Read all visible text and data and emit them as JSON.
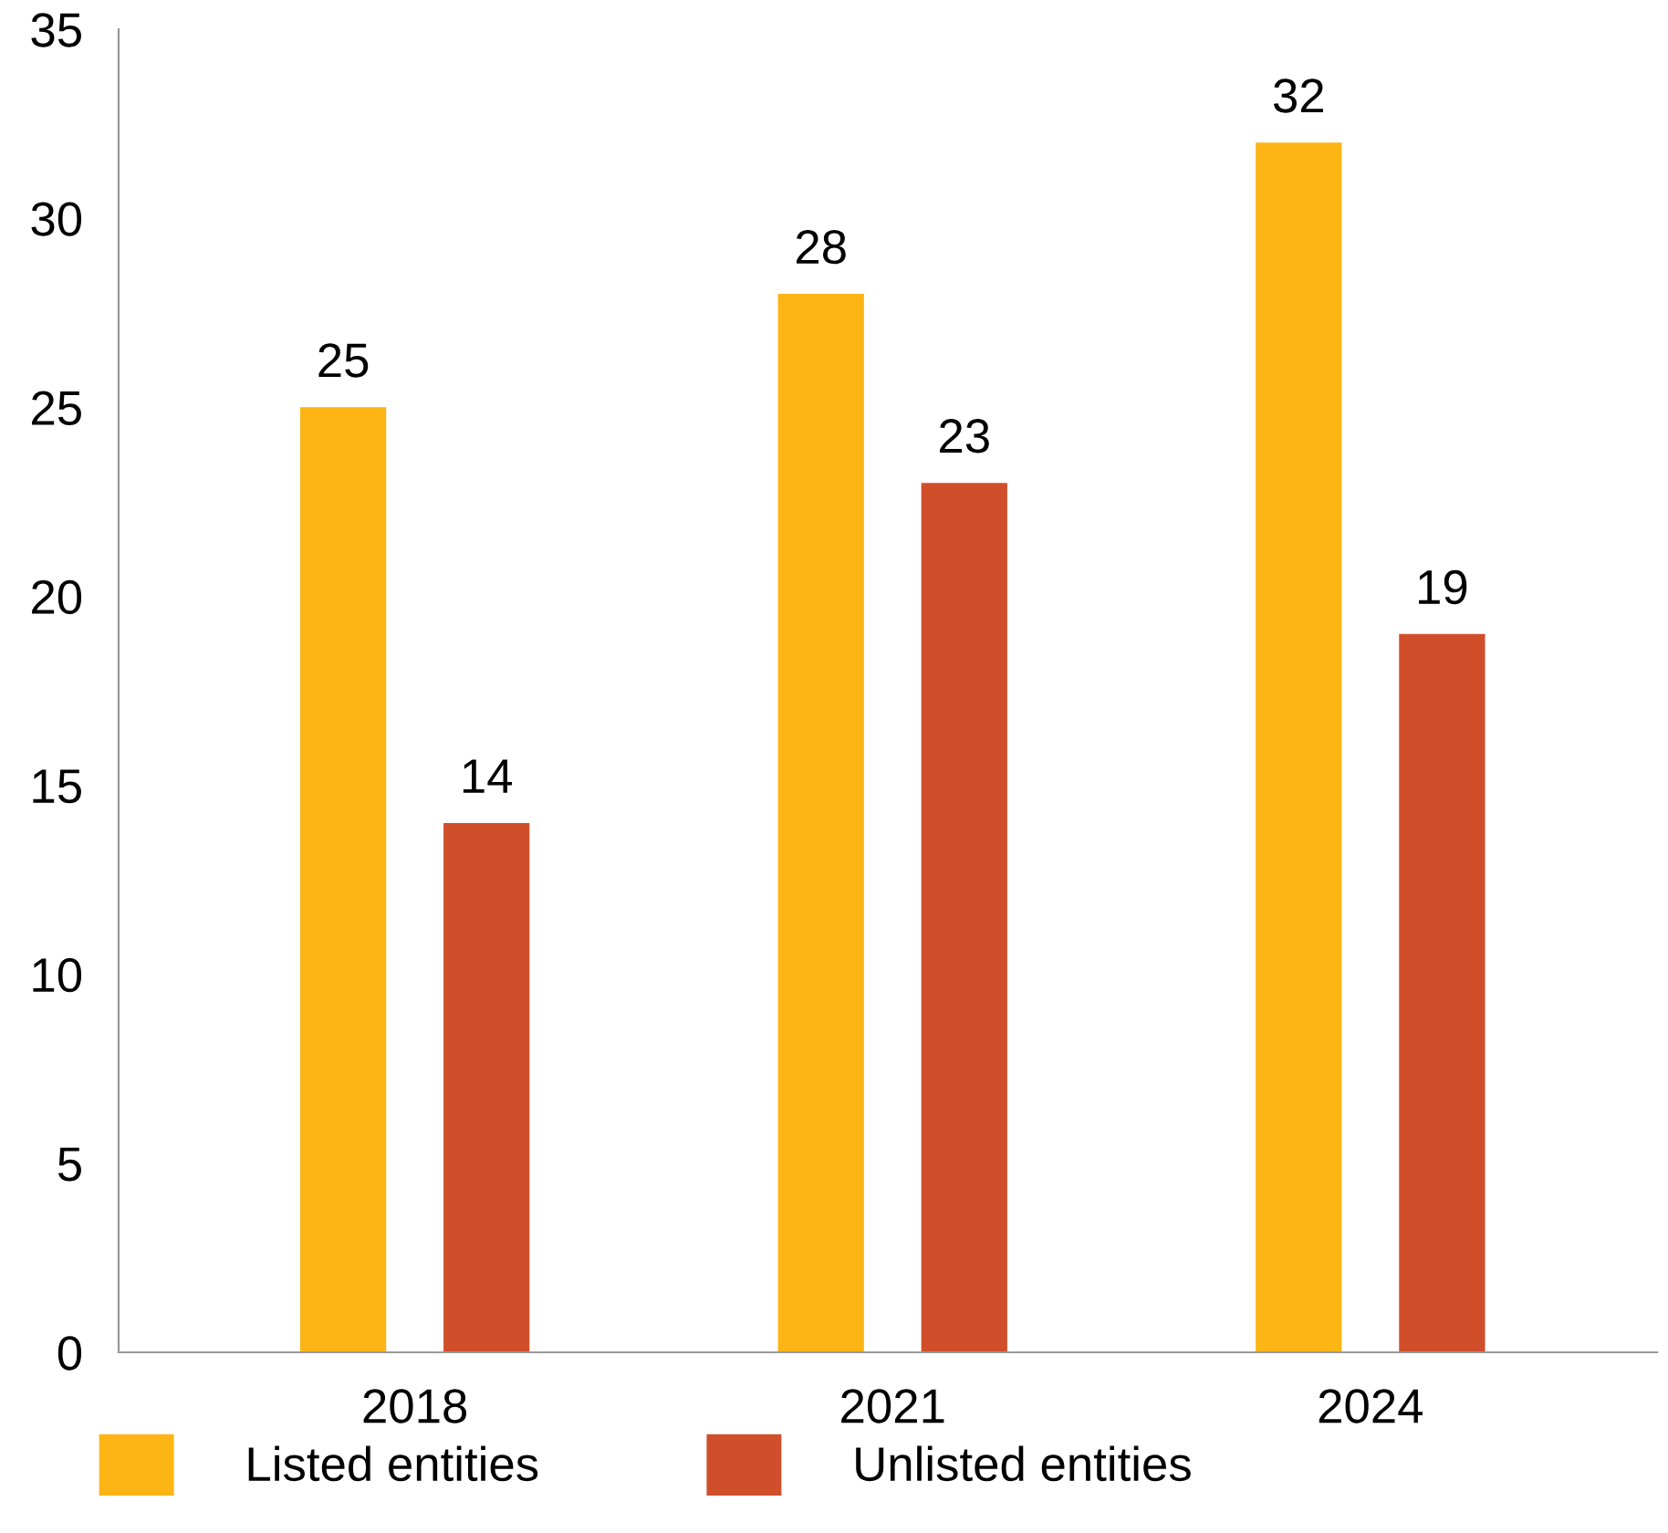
{
  "chart_data": {
    "type": "bar",
    "categories": [
      "2018",
      "2021",
      "2024"
    ],
    "series": [
      {
        "name": "Listed entities",
        "color": "#fdb415",
        "values": [
          25,
          28,
          32
        ]
      },
      {
        "name": "Unlisted entities",
        "color": "#d04f2a",
        "values": [
          14,
          23,
          19
        ]
      }
    ],
    "ylim": [
      0,
      35
    ],
    "yticks": [
      0,
      5,
      10,
      15,
      20,
      25,
      30,
      35
    ],
    "grid": false,
    "legend": "bottom",
    "data_labels": true
  }
}
